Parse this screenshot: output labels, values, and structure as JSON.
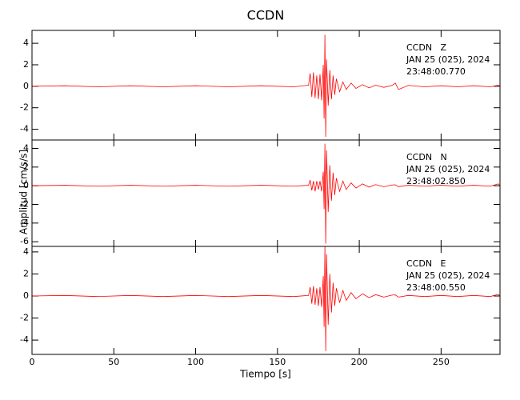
{
  "chart_data": [
    {
      "type": "line",
      "title": "CCDN",
      "annotations": [
        "CCDN   Z",
        "JAN 25 (025), 2024",
        "23:48:00.770"
      ],
      "xlim": [
        0,
        286
      ],
      "xticks": [
        0,
        50,
        100,
        150,
        200,
        250
      ],
      "ylim": [
        -5,
        5.2
      ],
      "yticks": [
        -4,
        -2,
        0,
        2,
        4
      ],
      "x": [
        0,
        20,
        40,
        60,
        80,
        100,
        120,
        140,
        160,
        169,
        170,
        171,
        172,
        173,
        174,
        175,
        176,
        177,
        178,
        178.5,
        179,
        179.5,
        180,
        181,
        182,
        183,
        184,
        185,
        186,
        188,
        190,
        192,
        195,
        198,
        202,
        206,
        210,
        215,
        220,
        222,
        224,
        230,
        240,
        250,
        260,
        270,
        280,
        285,
        286
      ],
      "series": [
        {
          "color": "#ff0000",
          "values": [
            0,
            0.05,
            -0.05,
            0.05,
            -0.05,
            0.05,
            -0.05,
            0.05,
            -0.05,
            0.1,
            1.2,
            -1.0,
            1.3,
            -1.1,
            1.0,
            -1.2,
            1.1,
            -1.3,
            2.0,
            -3.0,
            4.8,
            -4.7,
            2.5,
            -1.8,
            1.5,
            -1.2,
            1.0,
            -0.8,
            0.7,
            -0.5,
            0.4,
            -0.3,
            0.3,
            -0.2,
            0.15,
            -0.15,
            0.1,
            -0.1,
            0.08,
            0.3,
            -0.3,
            0.08,
            -0.05,
            0.05,
            -0.05,
            0.05,
            -0.05,
            0.1,
            0
          ]
        }
      ]
    },
    {
      "type": "line",
      "y_label": "Amplitud [cm/s/s]",
      "annotations": [
        "CCDN   N",
        "JAN 25 (025), 2024",
        "23:48:02.850"
      ],
      "xlim": [
        0,
        286
      ],
      "xticks": [
        0,
        50,
        100,
        150,
        200,
        250
      ],
      "ylim": [
        -6.5,
        4.9
      ],
      "yticks": [
        -6,
        -4,
        -2,
        0,
        2,
        4
      ],
      "x": [
        0,
        20,
        40,
        60,
        80,
        100,
        120,
        140,
        160,
        169,
        170,
        171,
        172,
        173,
        174,
        175,
        176,
        177,
        178,
        178.5,
        179,
        179.5,
        180,
        181,
        182,
        183,
        184,
        185,
        186,
        188,
        190,
        192,
        195,
        198,
        202,
        206,
        210,
        215,
        220,
        222,
        224,
        230,
        240,
        250,
        260,
        270,
        280,
        285,
        286
      ],
      "series": [
        {
          "color": "#ff0000",
          "values": [
            0,
            0.05,
            -0.05,
            0.05,
            -0.05,
            0.05,
            -0.05,
            0.05,
            -0.05,
            0.05,
            0.6,
            -0.5,
            0.5,
            -0.6,
            0.5,
            -0.4,
            0.5,
            -0.6,
            1.5,
            -2.5,
            4.5,
            -6.2,
            3.8,
            -2.8,
            2.2,
            -1.6,
            1.4,
            -1.0,
            0.8,
            -0.6,
            0.5,
            -0.4,
            0.3,
            -0.25,
            0.2,
            -0.15,
            0.12,
            -0.1,
            0.08,
            0.1,
            -0.1,
            0.05,
            -0.05,
            0.05,
            -0.05,
            0.05,
            -0.05,
            0.2,
            0
          ]
        }
      ]
    },
    {
      "type": "line",
      "x_label": "Tiempo [s]",
      "annotations": [
        "CCDN   E",
        "JAN 25 (025), 2024",
        "23:48:00.550"
      ],
      "xlim": [
        0,
        286
      ],
      "xticks": [
        0,
        50,
        100,
        150,
        200,
        250
      ],
      "ylim": [
        -5.3,
        4.5
      ],
      "yticks": [
        -4,
        -2,
        0,
        2,
        4
      ],
      "x": [
        0,
        20,
        40,
        60,
        80,
        100,
        120,
        140,
        160,
        169,
        170,
        171,
        172,
        173,
        174,
        175,
        176,
        177,
        178,
        178.5,
        179,
        179.5,
        180,
        181,
        182,
        183,
        184,
        185,
        186,
        188,
        190,
        192,
        195,
        198,
        202,
        206,
        210,
        215,
        220,
        222,
        224,
        230,
        240,
        250,
        260,
        270,
        280,
        285,
        286
      ],
      "series": [
        {
          "color": "#ff0000",
          "values": [
            0,
            0.05,
            -0.05,
            0.05,
            -0.05,
            0.05,
            -0.05,
            0.05,
            -0.05,
            0.05,
            0.8,
            -0.7,
            0.9,
            -0.8,
            0.7,
            -0.9,
            0.8,
            -1.0,
            1.8,
            -2.8,
            4.5,
            -5.0,
            3.8,
            -2.6,
            2.0,
            -1.5,
            1.2,
            -0.9,
            0.7,
            -0.6,
            0.5,
            -0.4,
            0.3,
            -0.25,
            0.2,
            -0.15,
            0.12,
            -0.1,
            0.08,
            0.1,
            -0.1,
            0.05,
            -0.05,
            0.05,
            -0.05,
            0.05,
            -0.05,
            0.15,
            0
          ]
        }
      ]
    }
  ]
}
